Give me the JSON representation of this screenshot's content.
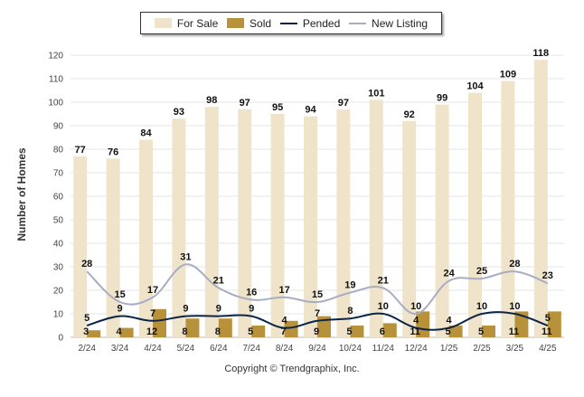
{
  "legend": {
    "for_sale": "For Sale",
    "sold": "Sold",
    "pended": "Pended",
    "new_listing": "New Listing"
  },
  "footer": {
    "copyright": "Copyright © Trendgraphix, Inc."
  },
  "colors": {
    "for_sale": "#efe3c9",
    "sold": "#b8923a",
    "pended": "#0b2447",
    "new_listing": "#a7adc3",
    "grid": "#e6e6e6"
  },
  "chart_data": {
    "type": "bar",
    "categories": [
      "2/24",
      "3/24",
      "4/24",
      "5/24",
      "6/24",
      "7/24",
      "8/24",
      "9/24",
      "10/24",
      "11/24",
      "12/24",
      "1/25",
      "2/25",
      "3/25",
      "4/25"
    ],
    "ylabel": "Number of Homes",
    "xlabel": "",
    "ylim": [
      0,
      120
    ],
    "yticks": [
      0,
      10,
      20,
      30,
      40,
      50,
      60,
      70,
      80,
      90,
      100,
      110,
      120
    ],
    "grid": true,
    "legend_position": "top-center",
    "series": [
      {
        "name": "For Sale",
        "type": "bar",
        "values": [
          77,
          76,
          84,
          93,
          98,
          97,
          95,
          94,
          97,
          101,
          92,
          99,
          104,
          109,
          118
        ]
      },
      {
        "name": "Sold",
        "type": "bar",
        "values": [
          3,
          4,
          12,
          8,
          8,
          5,
          7,
          9,
          5,
          6,
          11,
          5,
          5,
          11,
          11
        ]
      },
      {
        "name": "Pended",
        "type": "line",
        "values": [
          5,
          9,
          7,
          9,
          9,
          9,
          4,
          7,
          8,
          10,
          4,
          4,
          10,
          10,
          5
        ]
      },
      {
        "name": "New Listing",
        "type": "line",
        "values": [
          28,
          15,
          17,
          31,
          21,
          16,
          17,
          15,
          19,
          21,
          10,
          24,
          25,
          28,
          23
        ]
      }
    ]
  }
}
